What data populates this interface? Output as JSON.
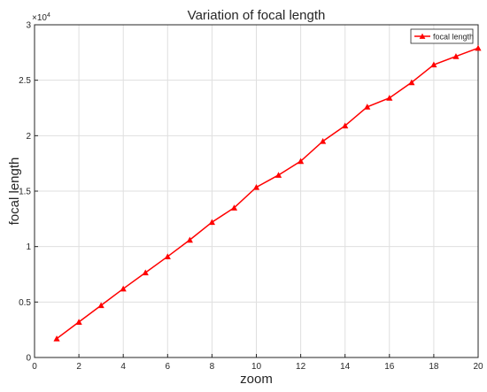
{
  "chart_data": {
    "type": "line",
    "title": "Variation of focal length",
    "xlabel": "zoom",
    "ylabel": "focal length",
    "y_exponent_label": "×10",
    "y_exponent_power": "4",
    "xlim": [
      0,
      20
    ],
    "ylim": [
      0,
      30000
    ],
    "x_ticks": [
      0,
      2,
      4,
      6,
      8,
      10,
      12,
      14,
      16,
      18,
      20
    ],
    "x_tick_labels": [
      "0",
      "2",
      "4",
      "6",
      "8",
      "10",
      "12",
      "14",
      "16",
      "18",
      "20"
    ],
    "y_ticks": [
      0,
      5000,
      10000,
      15000,
      20000,
      25000,
      30000
    ],
    "y_tick_labels": [
      "0",
      "0.5",
      "1",
      "1.5",
      "2",
      "2.5",
      "3"
    ],
    "grid": true,
    "legend_position": "top-right",
    "series": [
      {
        "name": "focal length",
        "color": "#ff0000",
        "marker": "triangle-up",
        "x": [
          1,
          2,
          3,
          4,
          5,
          6,
          7,
          8,
          9,
          10,
          11,
          12,
          13,
          14,
          15,
          16,
          17,
          18,
          19,
          20
        ],
        "y": [
          1700,
          3200,
          4700,
          6200,
          7650,
          9100,
          10600,
          12200,
          13500,
          15350,
          16450,
          17700,
          19500,
          20900,
          22600,
          23400,
          24800,
          26400,
          27150,
          27900
        ]
      }
    ]
  }
}
